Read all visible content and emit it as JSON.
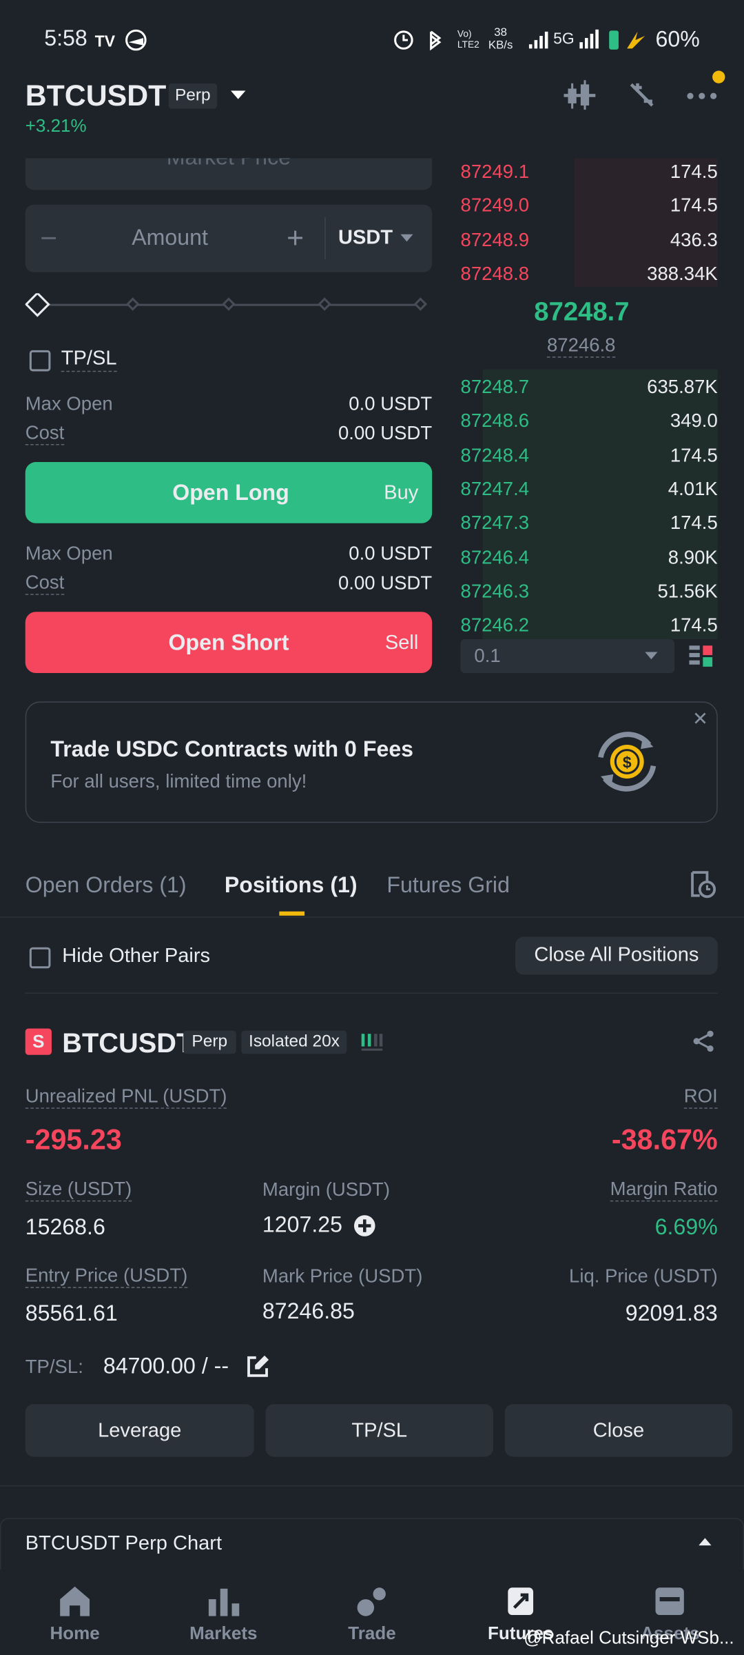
{
  "status": {
    "time": "5:58",
    "speed_value": "38",
    "speed_unit": "KB/s",
    "network": "5G",
    "battery": "60%"
  },
  "header": {
    "symbol": "BTCUSDT",
    "contract": "Perp",
    "change": "+3.21%"
  },
  "order_form": {
    "price_type": "Market Price",
    "amount_placeholder": "Amount",
    "amount_unit": "USDT",
    "tpsl": "TP/SL",
    "long": {
      "max_open_label": "Max Open",
      "max_open": "0.0 USDT",
      "cost_label": "Cost",
      "cost": "0.00 USDT",
      "button": "Open Long",
      "side": "Buy"
    },
    "short": {
      "max_open_label": "Max Open",
      "max_open": "0.0 USDT",
      "cost_label": "Cost",
      "cost": "0.00 USDT",
      "button": "Open Short",
      "side": "Sell"
    }
  },
  "order_book": {
    "asks": [
      {
        "price": "87249.1",
        "amount": "174.5"
      },
      {
        "price": "87249.0",
        "amount": "174.5"
      },
      {
        "price": "87248.9",
        "amount": "436.3"
      },
      {
        "price": "87248.8",
        "amount": "388.34K"
      }
    ],
    "last_price": "87248.7",
    "mark_price": "87246.8",
    "bids": [
      {
        "price": "87248.7",
        "amount": "635.87K"
      },
      {
        "price": "87248.6",
        "amount": "349.0"
      },
      {
        "price": "87248.4",
        "amount": "174.5"
      },
      {
        "price": "87247.4",
        "amount": "4.01K"
      },
      {
        "price": "87247.3",
        "amount": "174.5"
      },
      {
        "price": "87246.4",
        "amount": "8.90K"
      },
      {
        "price": "87246.3",
        "amount": "51.56K"
      },
      {
        "price": "87246.2",
        "amount": "174.5"
      }
    ],
    "precision": "0.1"
  },
  "banner": {
    "title": "Trade USDC Contracts with 0 Fees",
    "subtitle": "For all users, limited time only!"
  },
  "tabs": [
    "Open Orders (1)",
    "Positions (1)",
    "Futures Grid"
  ],
  "filter": {
    "hide_other_pairs": "Hide Other Pairs",
    "close_all": "Close All Positions"
  },
  "position": {
    "side": "S",
    "symbol": "BTCUSDT",
    "contract": "Perp",
    "margin_mode": "Isolated 20x",
    "pnl_label": "Unrealized PNL (USDT)",
    "pnl": "-295.23",
    "roi_label": "ROI",
    "roi": "-38.67%",
    "stats": [
      {
        "label": "Size (USDT)",
        "value": "15268.6"
      },
      {
        "label": "Margin (USDT)",
        "value": "1207.25"
      },
      {
        "label": "Margin Ratio",
        "value": "6.69%"
      },
      {
        "label": "Entry Price (USDT)",
        "value": "85561.61"
      },
      {
        "label": "Mark Price (USDT)",
        "value": "87246.85"
      },
      {
        "label": "Liq. Price (USDT)",
        "value": "92091.83"
      }
    ],
    "tpsl_label": "TP/SL:",
    "tpsl_value": "84700.00 / --",
    "buttons": [
      "Leverage",
      "TP/SL",
      "Close"
    ]
  },
  "chart_bar": {
    "label": "BTCUSDT Perp Chart"
  },
  "nav": [
    "Home",
    "Markets",
    "Trade",
    "Futures",
    "Assets"
  ],
  "watermark": "@Rafael Cutsinger WSb..."
}
